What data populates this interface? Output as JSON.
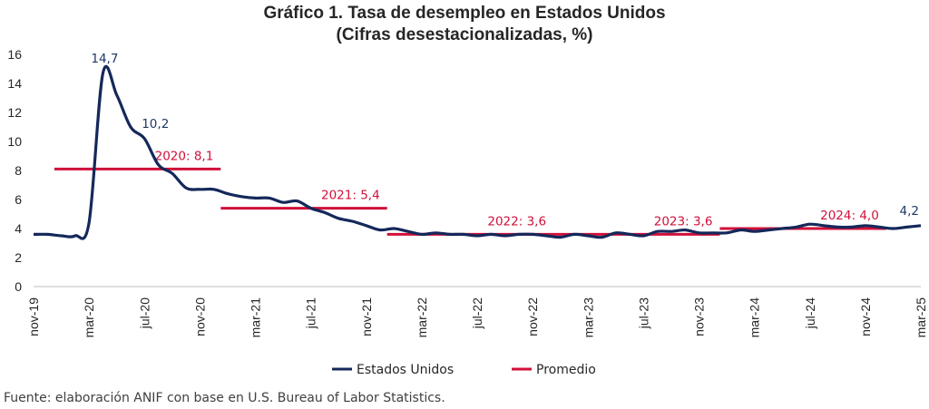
{
  "chart_data": {
    "type": "line",
    "title": "Gráfico 1. Tasa de desempleo en Estados Unidos",
    "subtitle": "(Cifras desestacionalizadas, %)",
    "source": "Fuente: elaboración ANIF con base en U.S. Bureau of Labor Statistics.",
    "ylim": [
      0,
      16
    ],
    "yticks": [
      0,
      2,
      4,
      6,
      8,
      10,
      12,
      14,
      16
    ],
    "categories": [
      "nov-19",
      "dic-19",
      "ene-20",
      "feb-20",
      "mar-20",
      "abr-20",
      "may-20",
      "jun-20",
      "jul-20",
      "ago-20",
      "sep-20",
      "oct-20",
      "nov-20",
      "dic-20",
      "ene-21",
      "feb-21",
      "mar-21",
      "abr-21",
      "may-21",
      "jun-21",
      "jul-21",
      "ago-21",
      "sep-21",
      "oct-21",
      "nov-21",
      "dic-21",
      "ene-22",
      "feb-22",
      "mar-22",
      "abr-22",
      "may-22",
      "jun-22",
      "jul-22",
      "ago-22",
      "sep-22",
      "oct-22",
      "nov-22",
      "dic-22",
      "ene-23",
      "feb-23",
      "mar-23",
      "abr-23",
      "may-23",
      "jun-23",
      "jul-23",
      "ago-23",
      "sep-23",
      "oct-23",
      "nov-23",
      "dic-23",
      "ene-24",
      "feb-24",
      "mar-24",
      "abr-24",
      "may-24",
      "jun-24",
      "jul-24",
      "ago-24",
      "sep-24",
      "oct-24",
      "nov-24",
      "dic-24",
      "ene-25",
      "feb-25",
      "mar-25"
    ],
    "xtick_labels": [
      "nov-19",
      "mar-20",
      "jul-20",
      "nov-20",
      "mar-21",
      "jul-21",
      "nov-21",
      "mar-22",
      "jul-22",
      "nov-22",
      "mar-23",
      "jul-23",
      "nov-23",
      "mar-24",
      "jul-24",
      "nov-24",
      "mar-25"
    ],
    "series": [
      {
        "name": "Estados Unidos",
        "color": "#14285a",
        "values": [
          3.6,
          3.6,
          3.5,
          3.5,
          4.4,
          14.7,
          13.2,
          11.0,
          10.2,
          8.4,
          7.8,
          6.8,
          6.7,
          6.7,
          6.4,
          6.2,
          6.1,
          6.1,
          5.8,
          5.9,
          5.4,
          5.1,
          4.7,
          4.5,
          4.2,
          3.9,
          4.0,
          3.8,
          3.6,
          3.7,
          3.6,
          3.6,
          3.5,
          3.6,
          3.5,
          3.6,
          3.6,
          3.5,
          3.4,
          3.6,
          3.5,
          3.4,
          3.7,
          3.6,
          3.5,
          3.8,
          3.8,
          3.9,
          3.7,
          3.7,
          3.7,
          3.9,
          3.8,
          3.9,
          4.0,
          4.1,
          4.3,
          4.2,
          4.1,
          4.1,
          4.2,
          4.1,
          4.0,
          4.1,
          4.2
        ]
      }
    ],
    "averages": {
      "name": "Promedio",
      "color": "#d0103a",
      "segments": [
        {
          "label": "2020: 8,1",
          "value": 8.1,
          "start": "ene-20",
          "end": "dic-20"
        },
        {
          "label": "2021: 5,4",
          "value": 5.4,
          "start": "ene-21",
          "end": "dic-21"
        },
        {
          "label": "2022: 3,6",
          "value": 3.6,
          "start": "ene-22",
          "end": "dic-22"
        },
        {
          "label": "2023: 3,6",
          "value": 3.6,
          "start": "ene-23",
          "end": "dic-23"
        },
        {
          "label": "2024: 4,0",
          "value": 4.0,
          "start": "ene-24",
          "end": "dic-24"
        }
      ]
    },
    "data_labels": [
      {
        "text": "14,7",
        "at": "abr-20",
        "value": 14.7
      },
      {
        "text": "10,2",
        "at": "jul-20",
        "value": 10.2
      },
      {
        "text": "4,2",
        "at": "mar-25",
        "value": 4.2
      }
    ],
    "legend": {
      "position": "bottom",
      "items": [
        "Estados Unidos",
        "Promedio"
      ]
    },
    "grid": false
  }
}
